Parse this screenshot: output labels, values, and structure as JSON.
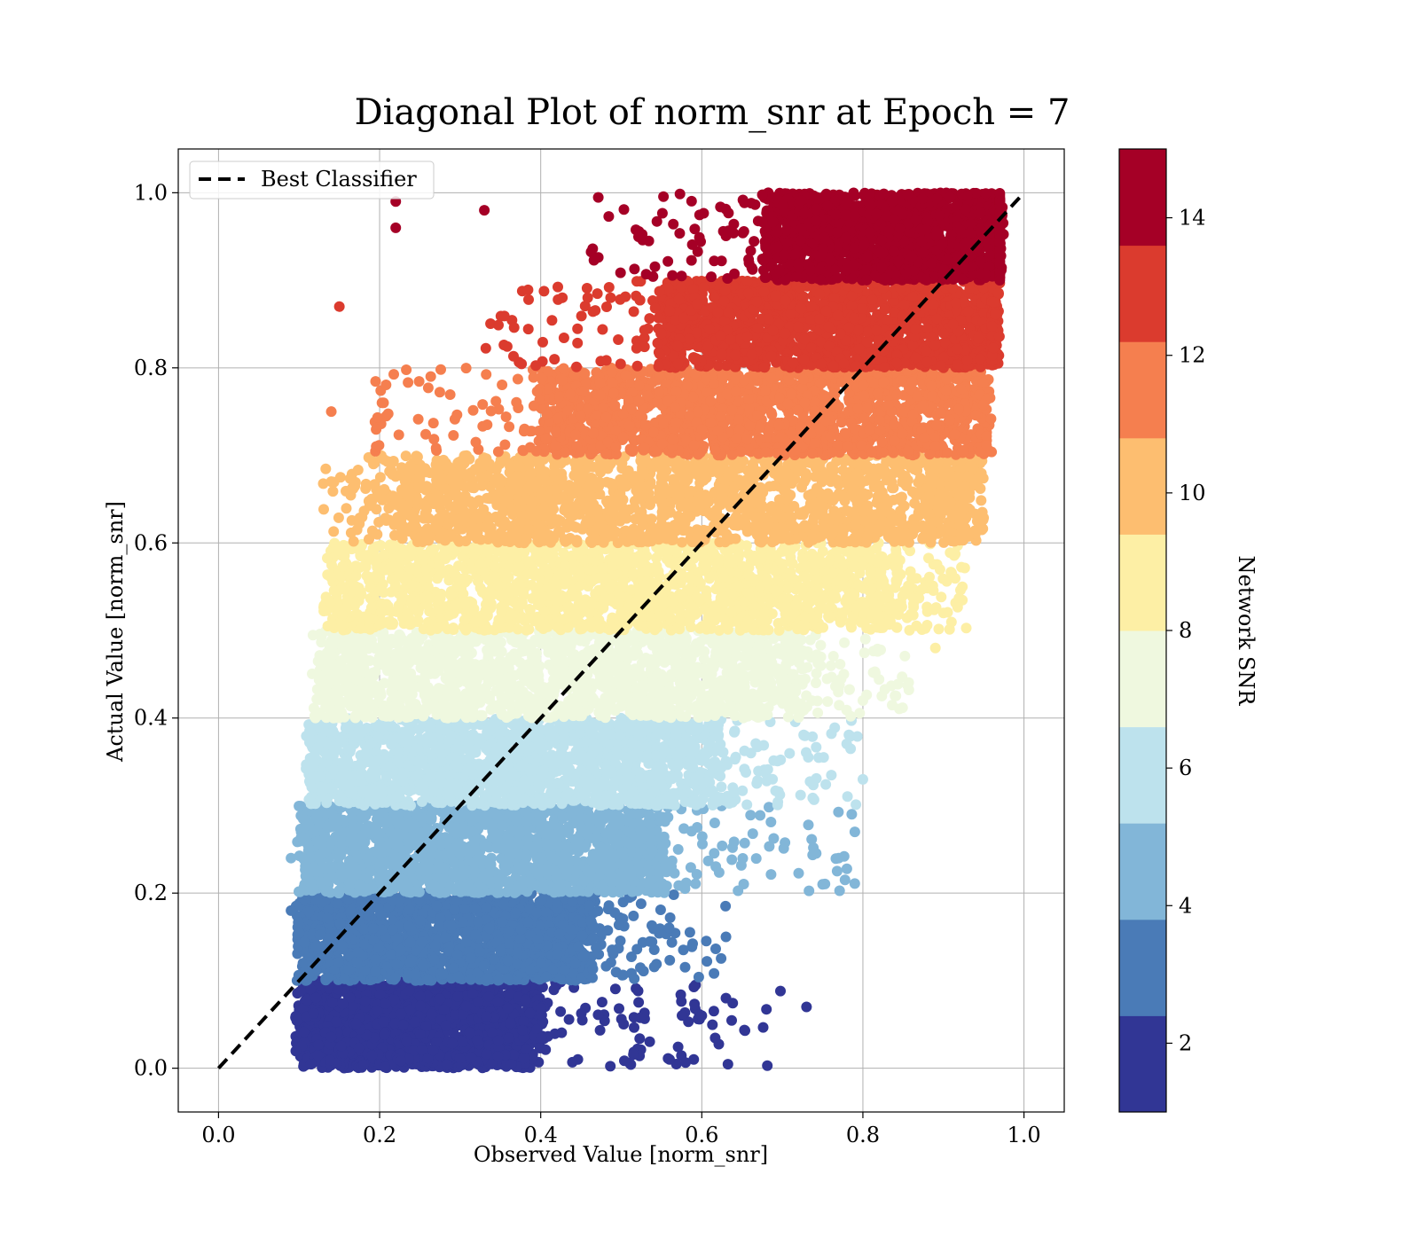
{
  "chart_data": {
    "type": "scatter",
    "title": "Diagonal Plot of norm_snr at Epoch = 7",
    "xlabel": "Observed Value [norm_snr]",
    "ylabel": "Actual Value [norm_snr]",
    "xlim": [
      -0.05,
      1.05
    ],
    "ylim": [
      -0.05,
      1.05
    ],
    "xticks": [
      "0.0",
      "0.2",
      "0.4",
      "0.6",
      "0.8",
      "1.0"
    ],
    "yticks": [
      "0.0",
      "0.2",
      "0.4",
      "0.6",
      "0.8",
      "1.0"
    ],
    "grid": true,
    "legend": {
      "placement": "top-left",
      "entries": [
        "Best Classifier"
      ]
    },
    "reference_line": {
      "name": "Best Classifier",
      "style": "dashed",
      "color": "#000000",
      "x": [
        0.0,
        1.0
      ],
      "y": [
        0.0,
        1.0
      ]
    },
    "colorbar": {
      "label": "Network SNR",
      "range": [
        1,
        15
      ],
      "ticks": [
        "2",
        "4",
        "6",
        "8",
        "10",
        "12",
        "14"
      ],
      "colors": [
        "#313695",
        "#4a7bb7",
        "#82b6d8",
        "#bde2ed",
        "#eff8df",
        "#fdefa5",
        "#fdbe70",
        "#f57f4f",
        "#db3b2e",
        "#a50026"
      ]
    },
    "bands": [
      {
        "y": [
          0.0,
          0.1
        ],
        "x_core": [
          0.1,
          0.4
        ],
        "x_tail": 0.7,
        "color": "#313695"
      },
      {
        "y": [
          0.1,
          0.2
        ],
        "x_core": [
          0.1,
          0.46
        ],
        "x_tail": 0.63,
        "color": "#4a7bb7"
      },
      {
        "y": [
          0.2,
          0.3
        ],
        "x_core": [
          0.1,
          0.55
        ],
        "x_tail": 0.79,
        "color": "#82b6d8"
      },
      {
        "y": [
          0.3,
          0.4
        ],
        "x_core": [
          0.11,
          0.62
        ],
        "x_tail": 0.8,
        "color": "#bde2ed"
      },
      {
        "y": [
          0.4,
          0.5
        ],
        "x_core": [
          0.12,
          0.72
        ],
        "x_tail": 0.86,
        "color": "#eff8df"
      },
      {
        "y": [
          0.5,
          0.6
        ],
        "x_core": [
          0.16,
          0.84
        ],
        "x_tail": 0.93,
        "color": "#fdefa5"
      },
      {
        "y": [
          0.6,
          0.7
        ],
        "x_core": [
          0.22,
          0.92
        ],
        "x_tail": 0.95,
        "color": "#fdbe70"
      },
      {
        "y": [
          0.7,
          0.8
        ],
        "x_core": [
          0.4,
          0.94
        ],
        "x_tail": 0.96,
        "color": "#f57f4f"
      },
      {
        "y": [
          0.8,
          0.9
        ],
        "x_core": [
          0.55,
          0.96
        ],
        "x_tail": 0.97,
        "color": "#db3b2e"
      },
      {
        "y": [
          0.9,
          1.0
        ],
        "x_core": [
          0.68,
          0.97
        ],
        "x_tail": 0.97,
        "color": "#a50026"
      }
    ],
    "sample_points": [
      {
        "x": 0.15,
        "y": 0.87,
        "color": "#db3b2e"
      },
      {
        "x": 0.22,
        "y": 0.99,
        "color": "#a50026"
      },
      {
        "x": 0.22,
        "y": 0.96,
        "color": "#a50026"
      },
      {
        "x": 0.33,
        "y": 0.98,
        "color": "#a50026"
      },
      {
        "x": 0.14,
        "y": 0.75,
        "color": "#f57f4f"
      },
      {
        "x": 0.14,
        "y": 0.67,
        "color": "#fdbe70"
      },
      {
        "x": 0.09,
        "y": 0.24,
        "color": "#82b6d8"
      },
      {
        "x": 0.09,
        "y": 0.18,
        "color": "#4a7bb7"
      },
      {
        "x": 0.73,
        "y": 0.07,
        "color": "#313695"
      },
      {
        "x": 0.63,
        "y": 0.08,
        "color": "#313695"
      },
      {
        "x": 0.6,
        "y": 0.06,
        "color": "#313695"
      },
      {
        "x": 0.59,
        "y": 0.01,
        "color": "#313695"
      },
      {
        "x": 0.56,
        "y": 0.01,
        "color": "#313695"
      },
      {
        "x": 0.75,
        "y": 0.21,
        "color": "#82b6d8"
      },
      {
        "x": 0.77,
        "y": 0.24,
        "color": "#82b6d8"
      },
      {
        "x": 0.79,
        "y": 0.27,
        "color": "#82b6d8"
      },
      {
        "x": 0.8,
        "y": 0.33,
        "color": "#bde2ed"
      },
      {
        "x": 0.8,
        "y": 0.42,
        "color": "#eff8df"
      },
      {
        "x": 0.89,
        "y": 0.48,
        "color": "#fdefa5"
      },
      {
        "x": 0.9,
        "y": 0.52,
        "color": "#fdefa5"
      },
      {
        "x": 0.92,
        "y": 0.62,
        "color": "#fdbe70"
      },
      {
        "x": 0.63,
        "y": 0.15,
        "color": "#4a7bb7"
      }
    ]
  }
}
